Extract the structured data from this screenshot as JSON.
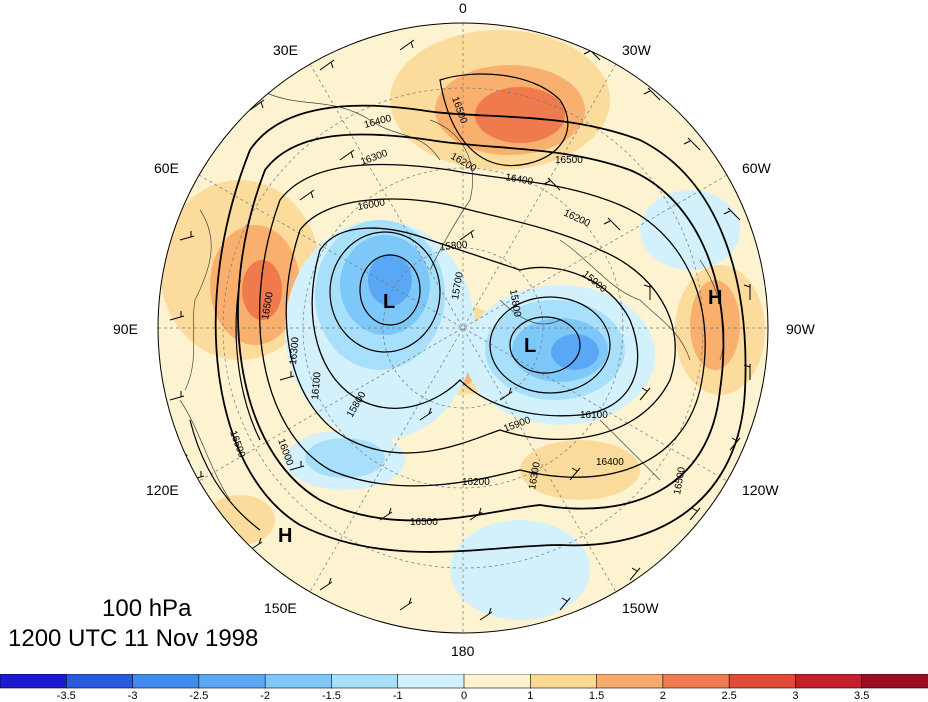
{
  "title": {
    "level": "100 hPa",
    "time": "1200 UTC 11 Nov 1998"
  },
  "longitude_labels": [
    "0",
    "30W",
    "60W",
    "90W",
    "120W",
    "150W",
    "180",
    "150E",
    "120E",
    "90E",
    "60E",
    "30E"
  ],
  "contour_labels": [
    "16500",
    "16400",
    "16300",
    "16200",
    "16100",
    "16000",
    "15900",
    "15800",
    "15700",
    "16600"
  ],
  "pressure_centers": [
    "L",
    "L",
    "H",
    "H"
  ],
  "colorbar": {
    "ticks": [
      "-3.5",
      "-3",
      "-2.5",
      "-2",
      "-1.5",
      "-1",
      "0",
      "1",
      "1.5",
      "2",
      "2.5",
      "3",
      "3.5"
    ],
    "colors": [
      "#1a1ad0",
      "#2a5ae0",
      "#3f8bf0",
      "#5aa8f5",
      "#7ec8f9",
      "#a8e0fb",
      "#d2f1fc",
      "#fdf3d0",
      "#fbd794",
      "#f8ab6a",
      "#ef7a4e",
      "#e24a3a",
      "#c41f2a",
      "#9b0d1e"
    ]
  },
  "anomaly_colors": {
    "warm": "#ef7a4e",
    "warm_light": "#fbd794",
    "neutral": "#fdf3d0",
    "cool_light": "#d2f1fc",
    "cool": "#5aa8f5"
  }
}
